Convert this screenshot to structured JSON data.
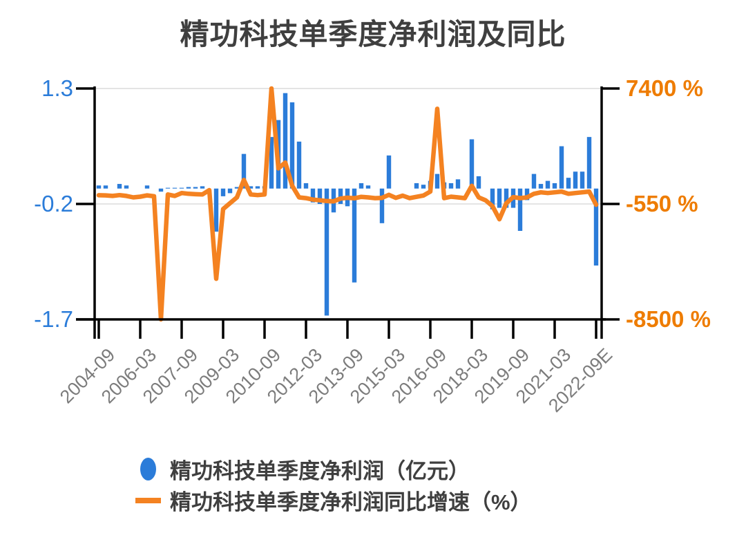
{
  "chart_data": {
    "type": "bar",
    "subtype": "bar-and-line-combo",
    "title": "精功科技单季度净利润及同比",
    "grid": "horizontal-light",
    "legend_position": "bottom",
    "colors": {
      "bar": "#2b7cd9",
      "line": "#f48221",
      "left_axis_label": "#2b7cd9",
      "right_axis_label": "#ee7c00",
      "title_text": "#3f3f3f",
      "x_label": "#7c7c7c",
      "gridline": "#e4e4e4",
      "axis": "#000000"
    },
    "categories": [
      "2004-09",
      "2004-12",
      "2005-03",
      "2005-06",
      "2005-09",
      "2005-12",
      "2006-03",
      "2006-06",
      "2006-09",
      "2006-12",
      "2007-03",
      "2007-06",
      "2007-09",
      "2007-12",
      "2008-03",
      "2008-06",
      "2008-09",
      "2008-12",
      "2009-03",
      "2009-06",
      "2009-09",
      "2009-12",
      "2010-03",
      "2010-06",
      "2010-09",
      "2010-12",
      "2011-03",
      "2011-06",
      "2011-09",
      "2011-12",
      "2012-03",
      "2012-06",
      "2012-09",
      "2012-12",
      "2013-03",
      "2013-06",
      "2013-09",
      "2013-12",
      "2014-03",
      "2014-06",
      "2014-09",
      "2014-12",
      "2015-03",
      "2015-06",
      "2015-09",
      "2015-12",
      "2016-03",
      "2016-06",
      "2016-09",
      "2016-12",
      "2017-03",
      "2017-06",
      "2017-09",
      "2017-12",
      "2018-03",
      "2018-06",
      "2018-09",
      "2018-12",
      "2019-03",
      "2019-06",
      "2019-09",
      "2019-12",
      "2020-03",
      "2020-06",
      "2020-09",
      "2020-12",
      "2021-03",
      "2021-06",
      "2021-09",
      "2021-12",
      "2022-03",
      "2022-06",
      "2022-09E"
    ],
    "x_tick_labels": [
      "2004-09",
      "2006-03",
      "2007-09",
      "2009-03",
      "2010-09",
      "2012-03",
      "2013-09",
      "2015-03",
      "2016-09",
      "2018-03",
      "2019-09",
      "2021-03",
      "2022-09E"
    ],
    "x_tick_every": 6,
    "series": [
      {
        "name": "精功科技单季度净利润（亿元）",
        "type": "bar",
        "axis": "left",
        "color": "#2b7cd9",
        "values": [
          0.04,
          0.04,
          0,
          0.06,
          0.04,
          0,
          0,
          0.04,
          0,
          -0.04,
          0.01,
          0.01,
          0.01,
          0.02,
          0.02,
          0.03,
          0,
          -0.56,
          -0.1,
          -0.06,
          0.02,
          0.45,
          0.03,
          0.03,
          0.03,
          0.67,
          0.89,
          1.24,
          1.12,
          0.61,
          0.07,
          -0.18,
          -0.2,
          -1.65,
          -0.31,
          -0.2,
          -0.23,
          -1.22,
          0.07,
          0.04,
          0,
          -0.45,
          0.43,
          0,
          0,
          0,
          0.07,
          0.05,
          0.1,
          0.19,
          0.08,
          0.07,
          0.12,
          0,
          0.64,
          0.16,
          0,
          -0.27,
          -0.25,
          -0.25,
          -0.25,
          -0.55,
          -0.15,
          0.19,
          0.06,
          0.1,
          0.07,
          0.55,
          0.14,
          0.22,
          0.22,
          0.67,
          -1.0
        ]
      },
      {
        "name": "精功科技单季度净利润同比增速（%）",
        "type": "line",
        "axis": "right",
        "color": "#f48221",
        "values": [
          50,
          40,
          0,
          60,
          0,
          -100,
          -50,
          40,
          -20,
          -8500,
          100,
          0,
          200,
          150,
          120,
          100,
          400,
          -5700,
          -900,
          -500,
          -100,
          1100,
          100,
          60,
          100,
          7400,
          1900,
          2300,
          700,
          -100,
          -150,
          -250,
          -300,
          -350,
          -370,
          -180,
          -120,
          -160,
          -60,
          -100,
          -150,
          -130,
          80,
          -130,
          20,
          -150,
          -60,
          30,
          300,
          6000,
          -150,
          -50,
          -100,
          -150,
          700,
          -100,
          -300,
          -700,
          -1600,
          -500,
          -80,
          -150,
          -100,
          150,
          250,
          200,
          250,
          300,
          150,
          200,
          250,
          300,
          -600
        ]
      }
    ],
    "left_axis": {
      "tick_labels": [
        "1.3",
        "-0.2",
        "-1.7"
      ],
      "tick_values": [
        1.3,
        -0.2,
        -1.7
      ],
      "min": -1.7,
      "max": 1.3
    },
    "right_axis": {
      "tick_labels": [
        "7400 %",
        "-550 %",
        "-8500 %"
      ],
      "tick_values": [
        7400,
        -550,
        -8500
      ],
      "min": -8500,
      "max": 7400
    }
  },
  "legend": {
    "items": [
      {
        "label": "精功科技单季度净利润（亿元）",
        "marker": "circle",
        "color": "#2b7cd9"
      },
      {
        "label": "精功科技单季度净利润同比增速（%）",
        "marker": "line",
        "color": "#f48221"
      }
    ]
  }
}
